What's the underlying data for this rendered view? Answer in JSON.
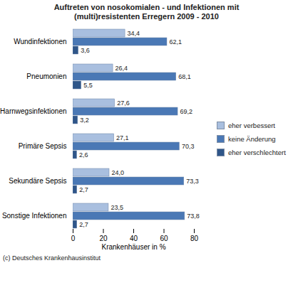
{
  "chart_data": {
    "type": "bar",
    "title": "Auftreten von nosokomialen - und Infektionen mit (multi)resistenten Erregern 2009 - 2010",
    "x_label": "Krankenhäuser in %",
    "caption": "(c) Deutsches Krankenhausinstitut",
    "orientation": "horizontal",
    "categories": [
      "Wundinfektionen",
      "Pneumonien",
      "Harnwegsinfektionen",
      "Primäre Sepsis",
      "Sekundäre Sepsis",
      "Sonstige Infektionen"
    ],
    "series": [
      {
        "name": "eher verbessert",
        "color": "#a9bfdf",
        "values": [
          34.4,
          26.4,
          27.6,
          27.1,
          24.0,
          23.5
        ],
        "value_labels": [
          "34,4",
          "26,4",
          "27,6",
          "27,1",
          "24,0",
          "23,5"
        ]
      },
      {
        "name": "keine Änderung",
        "color": "#4a78b5",
        "values": [
          62.1,
          68.1,
          69.2,
          70.3,
          73.3,
          73.8
        ],
        "value_labels": [
          "62,1",
          "68,1",
          "69,2",
          "70,3",
          "73,3",
          "73,8"
        ]
      },
      {
        "name": "eher verschlechtert",
        "color": "#2f5689",
        "values": [
          3.6,
          5.5,
          3.2,
          2.6,
          2.7,
          2.7
        ],
        "value_labels": [
          "3,6",
          "5,5",
          "3,2",
          "2,6",
          "2,7",
          "2,7"
        ]
      }
    ],
    "xlim": [
      0,
      80
    ],
    "xticks": [
      0,
      20,
      40,
      60,
      80
    ],
    "grid": false,
    "legend": "right",
    "data_labels": true
  }
}
